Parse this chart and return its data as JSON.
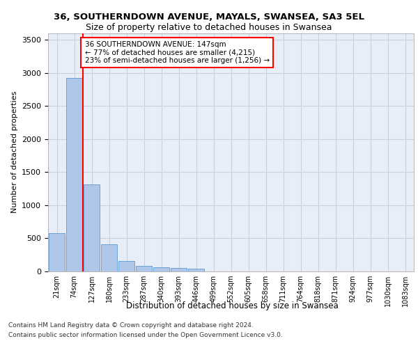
{
  "title1": "36, SOUTHERNDOWN AVENUE, MAYALS, SWANSEA, SA3 5EL",
  "title2": "Size of property relative to detached houses in Swansea",
  "xlabel": "Distribution of detached houses by size in Swansea",
  "ylabel": "Number of detached properties",
  "categories": [
    "21sqm",
    "74sqm",
    "127sqm",
    "180sqm",
    "233sqm",
    "287sqm",
    "340sqm",
    "393sqm",
    "446sqm",
    "499sqm",
    "552sqm",
    "605sqm",
    "658sqm",
    "711sqm",
    "764sqm",
    "818sqm",
    "871sqm",
    "924sqm",
    "977sqm",
    "1030sqm",
    "1083sqm"
  ],
  "values": [
    580,
    2920,
    1310,
    415,
    160,
    80,
    60,
    55,
    45,
    0,
    0,
    0,
    0,
    0,
    0,
    0,
    0,
    0,
    0,
    0,
    0
  ],
  "bar_color": "#aec6e8",
  "bar_edge_color": "#5b9bd5",
  "annotation_text": "36 SOUTHERNDOWN AVENUE: 147sqm\n← 77% of detached houses are smaller (4,215)\n23% of semi-detached houses are larger (1,256) →",
  "annotation_box_color": "white",
  "annotation_box_edge_color": "red",
  "ylim": [
    0,
    3600
  ],
  "yticks": [
    0,
    500,
    1000,
    1500,
    2000,
    2500,
    3000,
    3500
  ],
  "footnote1": "Contains HM Land Registry data © Crown copyright and database right 2024.",
  "footnote2": "Contains public sector information licensed under the Open Government Licence v3.0.",
  "background_color": "#e8eef8",
  "plot_background": "white",
  "grid_color": "#c8d0dc"
}
